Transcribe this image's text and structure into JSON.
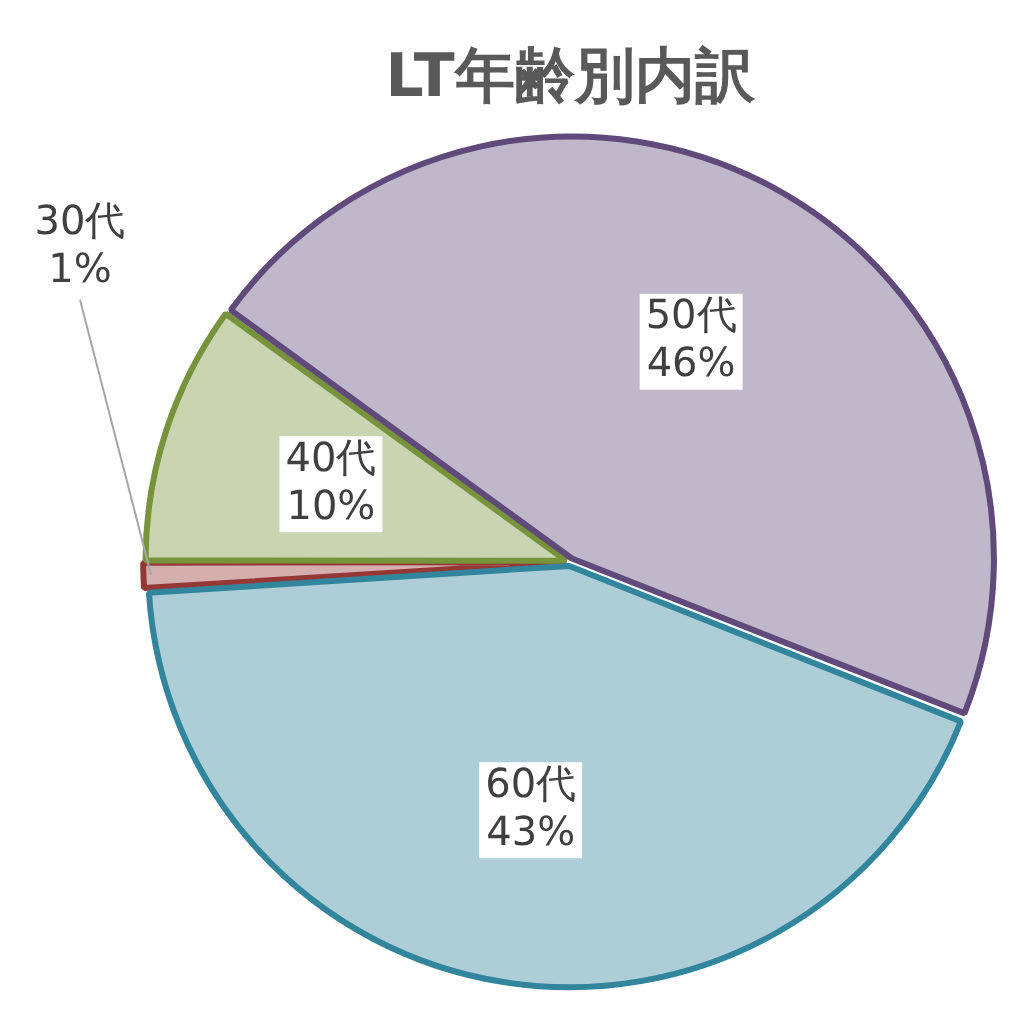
{
  "chart_data": {
    "type": "pie",
    "title": "LT年齢別内訳",
    "categories": [
      "30代",
      "40代",
      "50代",
      "60代"
    ],
    "values": [
      1,
      10,
      46,
      43
    ],
    "colors": [
      "#953735",
      "#77933c",
      "#604a7b",
      "#31859c"
    ],
    "value_labels": [
      "1%",
      "10%",
      "46%",
      "43%"
    ],
    "legend": false
  }
}
